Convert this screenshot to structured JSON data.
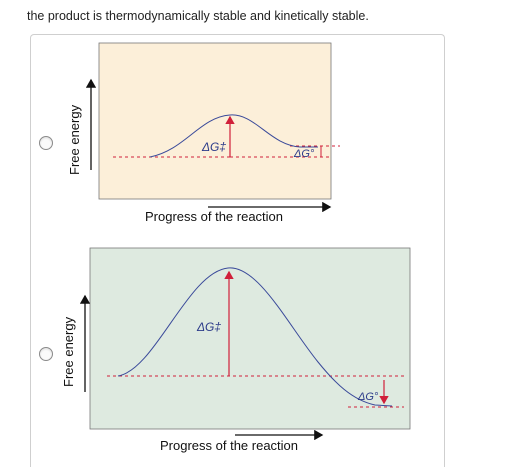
{
  "question": {
    "prompt": "the product is thermodynamically stable and kinetically stable."
  },
  "options": [
    {
      "y_label": "Free energy",
      "x_label": "Progress of the reaction",
      "activation_label": "ΔG‡",
      "reaction_label": "ΔG°",
      "panel_color": "#fcefd9"
    },
    {
      "y_label": "Free energy",
      "x_label": "Progress of the reaction",
      "activation_label": "ΔG‡",
      "reaction_label": "ΔG°",
      "panel_color": "#deeae0"
    }
  ],
  "colors": {
    "curve": "#3a4a9a",
    "arrow_red": "#d0203a",
    "axis": "#111111",
    "label_blue": "#2d3c8a"
  },
  "icons": [
    "radio-button",
    "arrow-up",
    "arrow-right"
  ]
}
